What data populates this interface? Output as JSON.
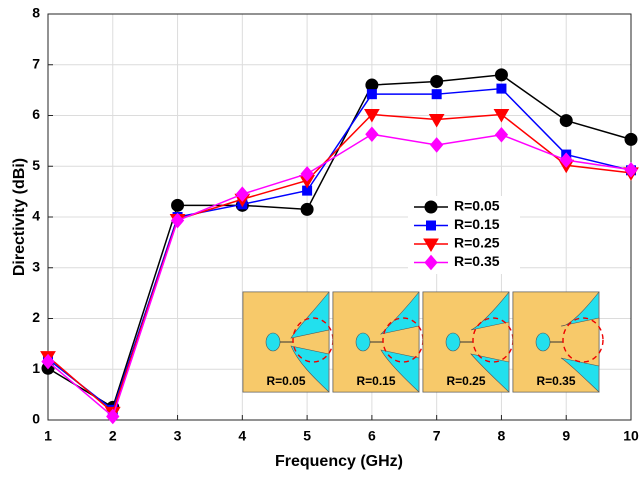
{
  "chart_data": {
    "type": "line",
    "x_label": "Frequency (GHz)",
    "y_label": "Directivity (dBi)",
    "x": [
      1,
      2,
      3,
      4,
      5,
      6,
      7,
      8,
      9,
      10
    ],
    "series": [
      {
        "name": "R=0.05",
        "color": "#000000",
        "marker": "circle",
        "values": [
          1.02,
          0.25,
          4.23,
          4.23,
          4.15,
          6.6,
          6.67,
          6.8,
          5.9,
          5.53
        ]
      },
      {
        "name": "R=0.15",
        "color": "#0000ff",
        "marker": "square",
        "values": [
          1.2,
          0.2,
          4.0,
          4.25,
          4.52,
          6.42,
          6.42,
          6.53,
          5.23,
          4.92
        ]
      },
      {
        "name": "R=0.25",
        "color": "#ff0000",
        "marker": "triangle-down",
        "values": [
          1.25,
          0.15,
          3.95,
          4.35,
          4.72,
          6.02,
          5.92,
          6.02,
          5.02,
          4.87
        ]
      },
      {
        "name": "R=0.35",
        "color": "#ff00ff",
        "marker": "diamond",
        "values": [
          1.15,
          0.07,
          3.93,
          4.45,
          4.85,
          5.63,
          5.42,
          5.62,
          5.12,
          4.93
        ]
      }
    ],
    "xlim": [
      1,
      10
    ],
    "xticks": [
      1,
      2,
      3,
      4,
      5,
      6,
      7,
      8,
      9,
      10
    ],
    "ylim": [
      0,
      8
    ],
    "yticks": [
      0,
      1,
      2,
      3,
      4,
      5,
      6,
      7,
      8
    ],
    "grid": true,
    "annotations": [
      "R=0.05",
      "R=0.15",
      "R=0.25",
      "R=0.35"
    ]
  }
}
